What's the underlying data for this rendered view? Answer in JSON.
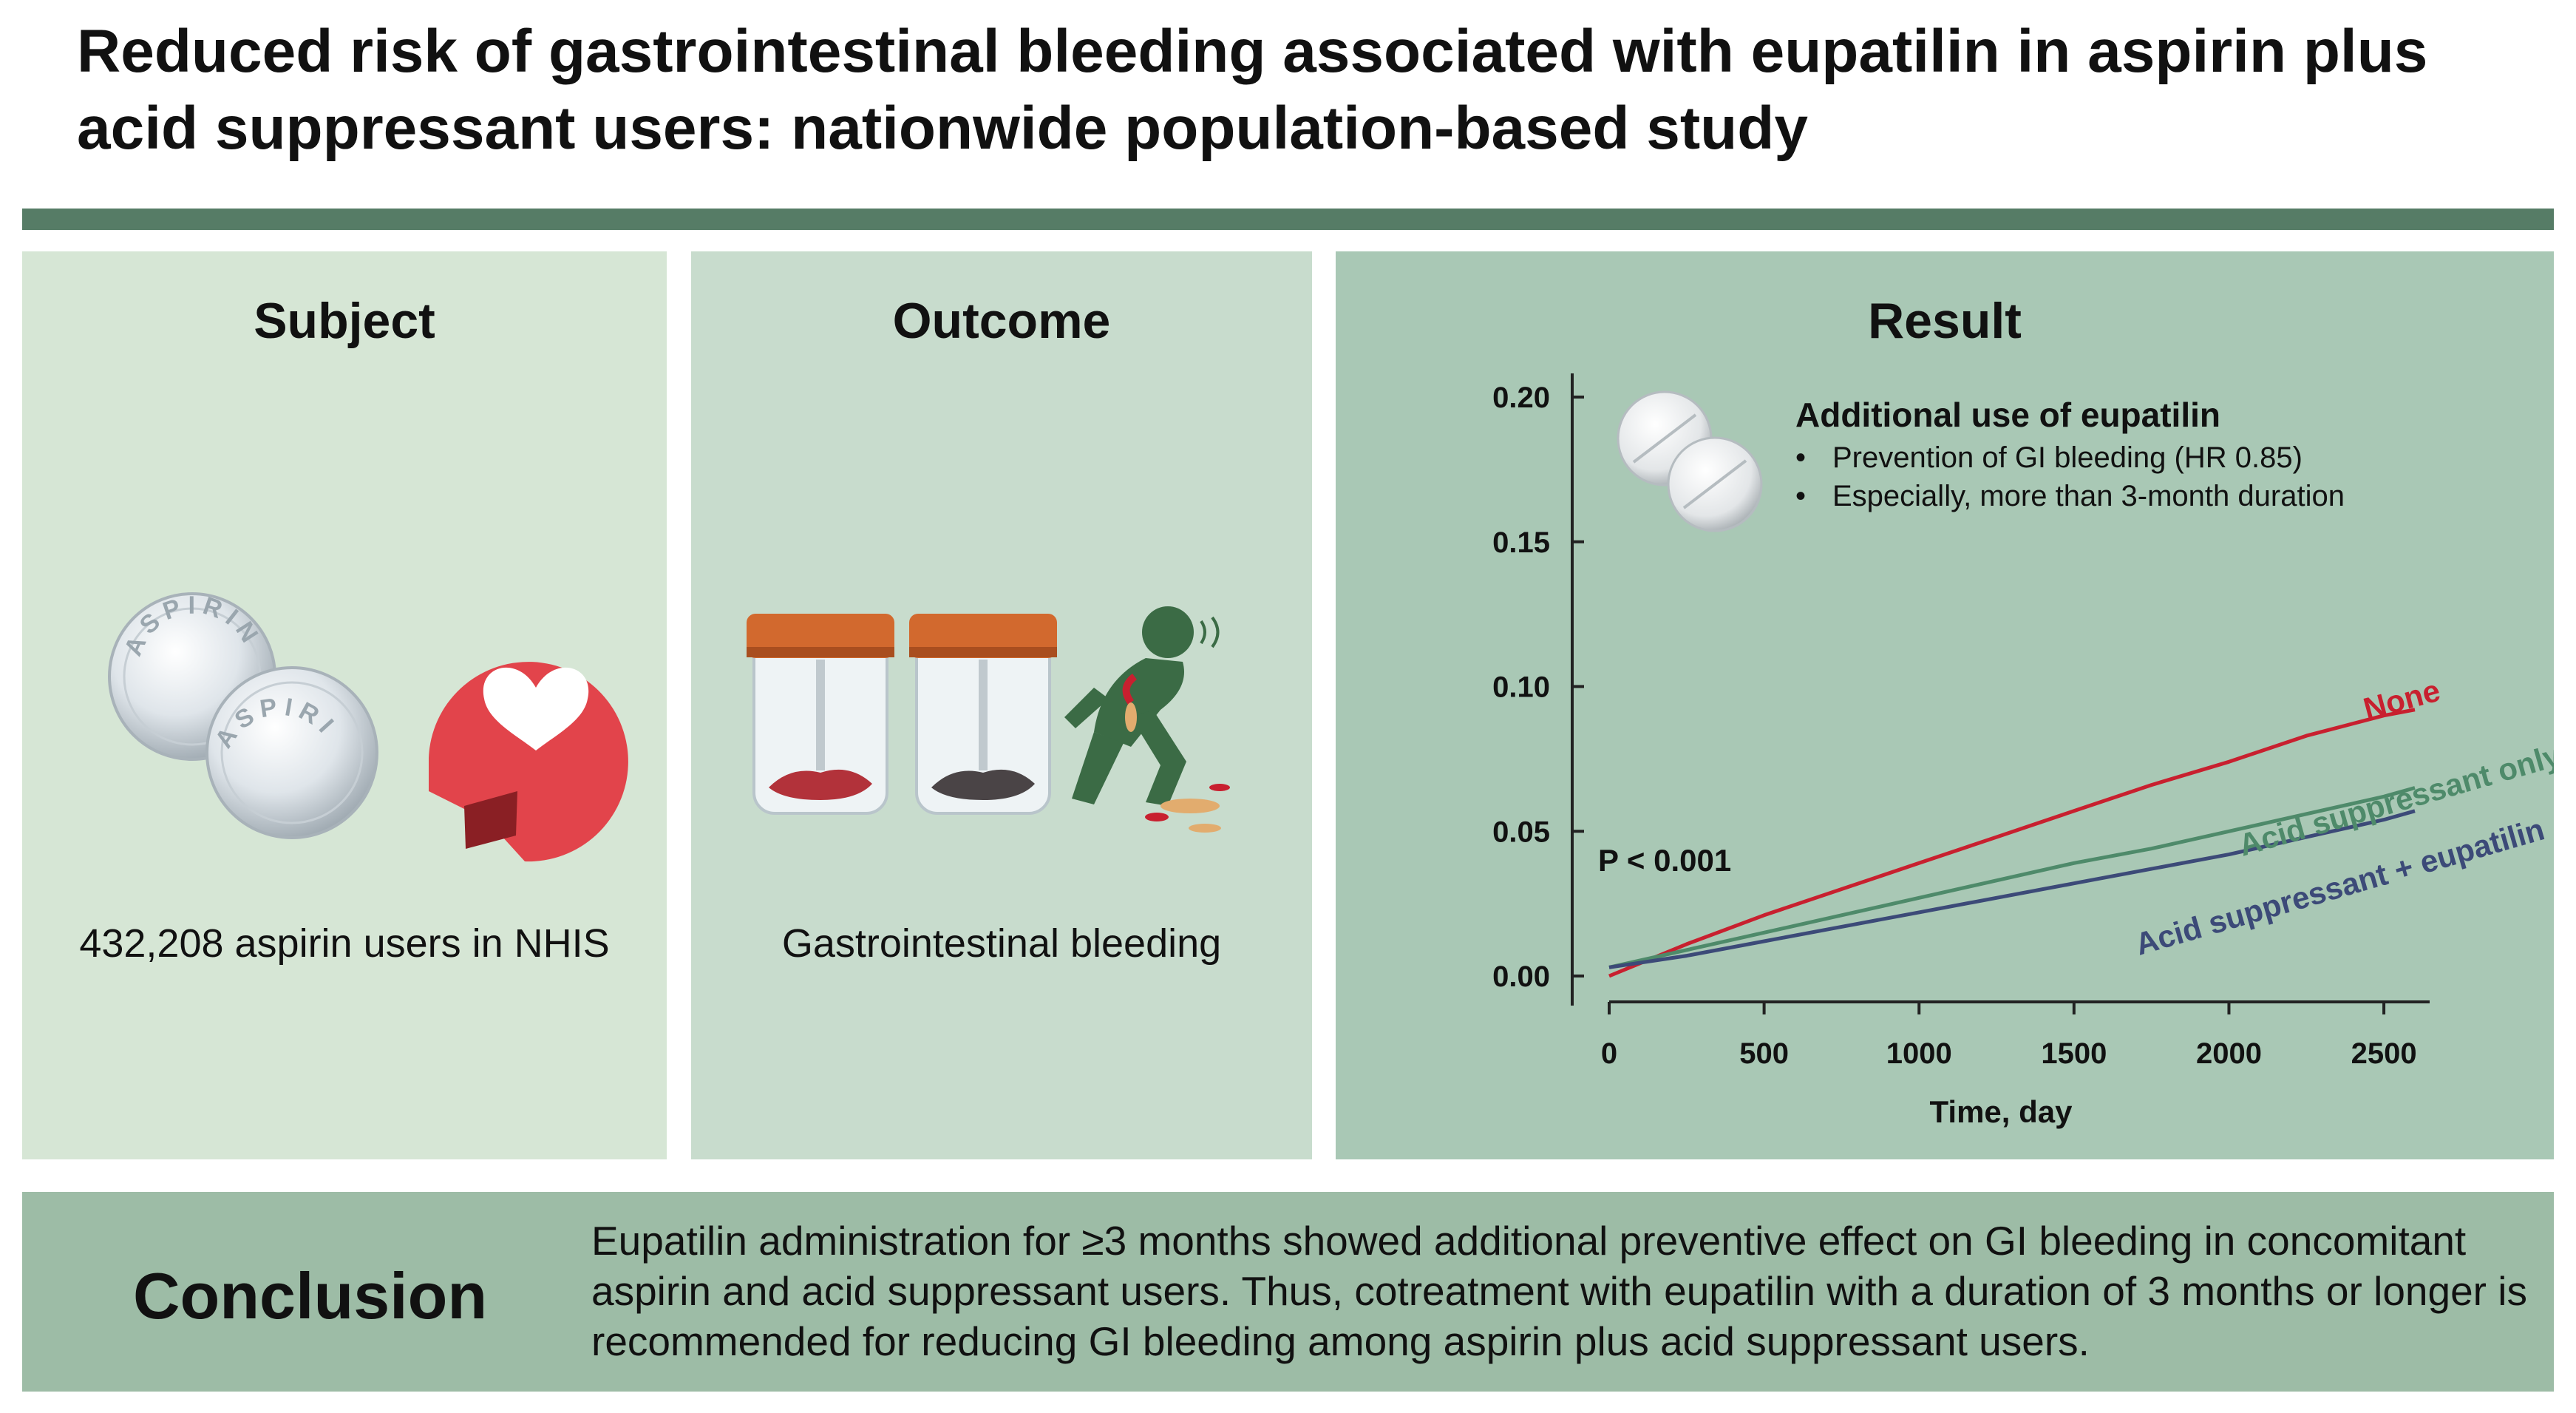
{
  "title": {
    "line1": "Reduced risk of gastrointestinal bleeding associated with eupatilin in aspirin plus",
    "line2": "acid suppressant users: nationwide population-based study"
  },
  "colors": {
    "rule": "#567c66",
    "subject_bg": "#d6e6d5",
    "outcome_bg": "#c8dccd",
    "result_bg": "#a9c8b5",
    "conclusion_bg": "#9dbca6",
    "series_none": "#c8202f",
    "series_acid": "#4e8a6a",
    "series_acid_eup": "#3c4a78"
  },
  "subject": {
    "heading": "Subject",
    "pill_text": "ASPIRIN",
    "caption": "432,208 aspirin users in NHIS",
    "icons": [
      "aspirin-tablet-icon",
      "heart-logo-icon"
    ]
  },
  "outcome": {
    "heading": "Outcome",
    "caption": "Gastrointestinal bleeding",
    "icons": [
      "stool-sample-red-icon",
      "stool-sample-black-icon",
      "vomiting-person-icon"
    ]
  },
  "result": {
    "heading": "Result",
    "annotation": {
      "heading": "Additional use of eupatilin",
      "items": [
        "Prevention of GI bleeding  (HR 0.85)",
        "Especially, more than 3-month duration"
      ],
      "icon": "eupatilin-tablet-icon"
    },
    "p_value": "P < 0.001"
  },
  "chart_data": {
    "type": "line",
    "title": "",
    "xlabel": "Time, day",
    "ylabel": "",
    "xlim": [
      0,
      2600
    ],
    "ylim": [
      0,
      0.2
    ],
    "xticks": [
      0,
      500,
      1000,
      1500,
      2000,
      2500
    ],
    "xtick_labels": [
      "0",
      "500",
      "1000",
      "1500",
      "2000",
      "2500"
    ],
    "yticks": [
      0,
      0.05,
      0.1,
      0.15,
      0.2
    ],
    "ytick_labels": [
      "0.00",
      "0.05",
      "0.10",
      "0.15",
      "0.20"
    ],
    "series": [
      {
        "name": "None",
        "x": [
          0,
          250,
          500,
          750,
          1000,
          1250,
          1500,
          1750,
          2000,
          2250,
          2500,
          2600
        ],
        "values": [
          0.0,
          0.011,
          0.021,
          0.03,
          0.039,
          0.048,
          0.057,
          0.066,
          0.074,
          0.083,
          0.09,
          0.092
        ]
      },
      {
        "name": "Acid suppressant only",
        "x": [
          0,
          250,
          500,
          750,
          1000,
          1250,
          1500,
          1750,
          2000,
          2250,
          2500,
          2600
        ],
        "values": [
          0.003,
          0.009,
          0.015,
          0.021,
          0.027,
          0.033,
          0.039,
          0.044,
          0.05,
          0.056,
          0.062,
          0.065
        ]
      },
      {
        "name": "Acid suppressant + eupatilin",
        "x": [
          0,
          250,
          500,
          750,
          1000,
          1250,
          1500,
          1750,
          2000,
          2250,
          2500,
          2600
        ],
        "values": [
          0.003,
          0.007,
          0.012,
          0.017,
          0.022,
          0.027,
          0.032,
          0.037,
          0.042,
          0.048,
          0.054,
          0.057
        ]
      }
    ]
  },
  "conclusion": {
    "heading": "Conclusion",
    "text": "Eupatilin administration for ≥3 months showed additional preventive effect on GI bleeding in concomitant aspirin and acid suppressant users. Thus, cotreatment with eupatilin with a duration of 3 months or longer is recommended for reducing GI bleeding among aspirin plus acid suppressant users."
  }
}
